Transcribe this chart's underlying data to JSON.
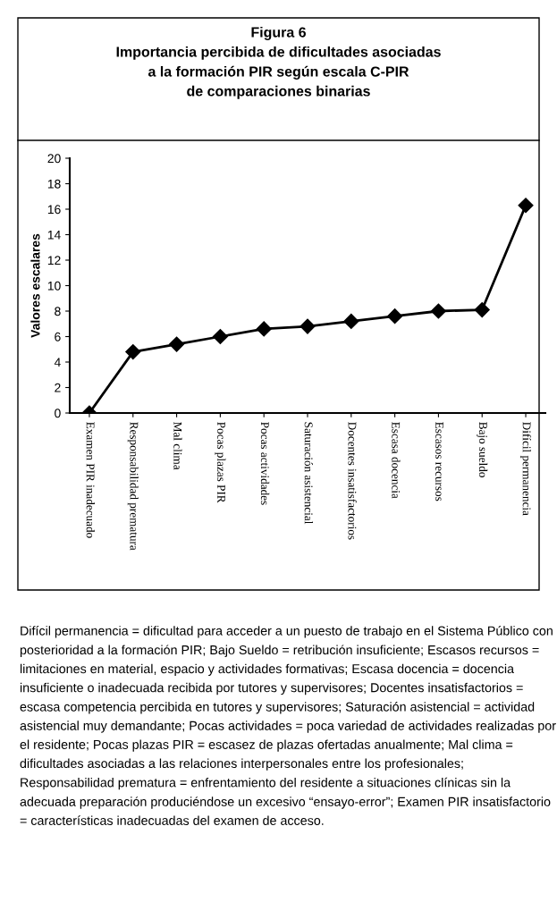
{
  "chart_data": {
    "type": "line",
    "title": "Figura 6\nImportancia percibida de dificultades asociadas\na la formación PIR según escala C-PIR\nde comparaciones binarias",
    "ylabel": "Valores escalares",
    "categories": [
      "Examen PIR inadecuado",
      "Responsabilidad prematura",
      "Mal clima",
      "Pocas plazas PIR",
      "Pocas actividades",
      "Saturación asistencial",
      "Docentes insatisfactorios",
      "Escasa docencia",
      "Escasos recursos",
      "Bajo sueldo",
      "Difícil permanencia"
    ],
    "series": [
      {
        "color": "#000000",
        "values": [
          0,
          4.8,
          5.4,
          6.0,
          6.6,
          6.8,
          7.2,
          7.6,
          8.0,
          8.1,
          16.3
        ]
      }
    ],
    "ylim": [
      0,
      20
    ],
    "yticks": [
      0,
      2,
      4,
      6,
      8,
      10,
      12,
      14,
      16,
      18,
      20
    ],
    "marker": "diamond",
    "line_style": "solid",
    "annotations": [
      "Difícil permanencia = dificultad para acceder a un puesto de trabajo en el Sistema Público con posterioridad a la formación PIR; Bajo Sueldo = retribución insuficiente; Escasos recursos = limitaciones en material, espacio y actividades formativas; Escasa docencia = docencia insuficiente o inadecuada recibida por tutores y supervisores; Docentes insatisfactorios = escasa competencia percibida en tutores y supervisores; Saturación asistencial = actividad asistencial muy demandante; Pocas actividades = poca variedad de actividades realizadas por el residente; Pocas plazas PIR = escasez de plazas ofertadas anualmente; Mal clima = dificultades asociadas a las relaciones interpersonales entre los profesionales; Responsabilidad prematura = enfrentamiento del residente a situaciones clínicas sin la adecuada preparación produciéndose un excesivo “ensayo-error”; Examen PIR insatisfactorio = características inadecuadas del examen de acceso."
    ]
  }
}
